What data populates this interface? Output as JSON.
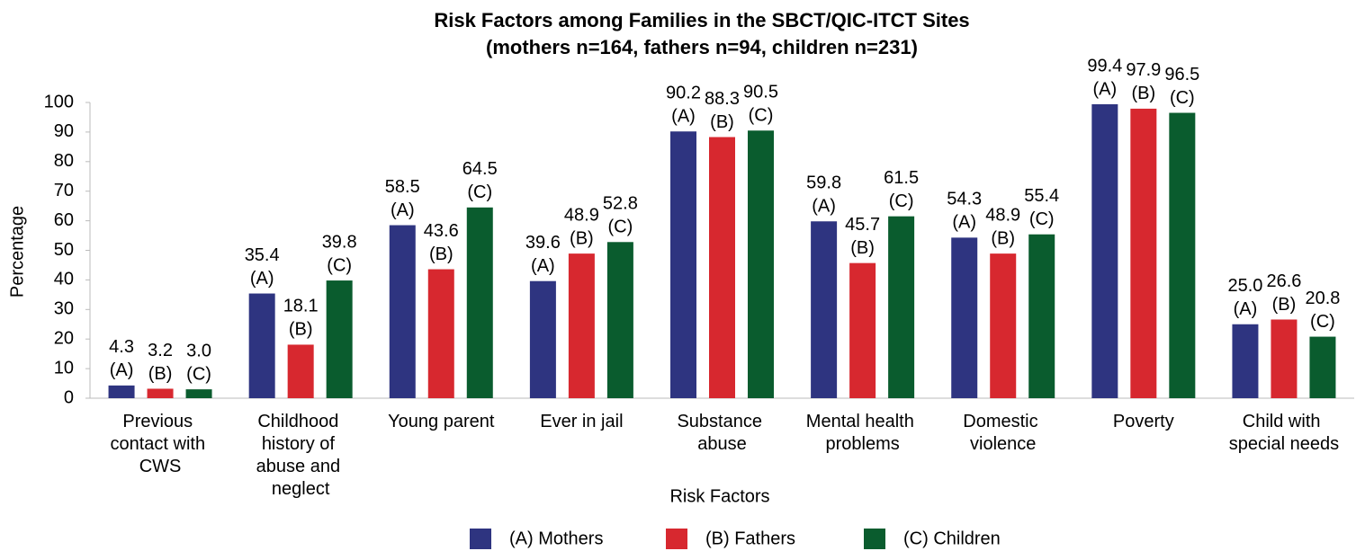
{
  "chart_data": {
    "type": "bar",
    "title": "Risk Factors among Families in the SBCT/QIC-ITCT Sites",
    "subtitle": "(mothers n=164, fathers n=94, children n=231)",
    "x_label": "Risk Factors",
    "y_label": "Percentage",
    "categories": [
      "Previous contact with CWS",
      "Childhood history of abuse and neglect",
      "Young parent",
      "Ever in jail",
      "Substance abuse",
      "Mental health problems",
      "Domestic violence",
      "Poverty",
      "Child with special needs"
    ],
    "series": [
      {
        "name": "(A) Mothers",
        "tag": "(A)",
        "color": "#2e3480",
        "values": [
          4.3,
          35.4,
          58.5,
          39.6,
          90.2,
          59.8,
          54.3,
          99.4,
          25.0
        ],
        "value_labels": [
          "4.3",
          "35.4",
          "58.5",
          "39.6",
          "90.2",
          "59.8",
          "54.3",
          "99.4",
          "25.0"
        ]
      },
      {
        "name": "(B) Fathers",
        "tag": "(B)",
        "color": "#d7282f",
        "values": [
          3.2,
          18.1,
          43.6,
          48.9,
          88.3,
          45.7,
          48.9,
          97.9,
          26.6
        ],
        "value_labels": [
          "3.2",
          "18.1",
          "43.6",
          "48.9",
          "88.3",
          "45.7",
          "48.9",
          "97.9",
          "26.6"
        ]
      },
      {
        "name": "(C) Children",
        "tag": "(C)",
        "color": "#0a5c2e",
        "values": [
          3.0,
          39.8,
          64.5,
          52.8,
          90.5,
          61.5,
          55.4,
          96.5,
          20.8
        ],
        "value_labels": [
          "3.0",
          "39.8",
          "64.5",
          "52.8",
          "90.5",
          "61.5",
          "55.4",
          "96.5",
          "20.8"
        ]
      }
    ],
    "ylim": [
      0,
      100
    ],
    "yticks": [
      0,
      10,
      20,
      30,
      40,
      50,
      60,
      70,
      80,
      90,
      100
    ],
    "grid": false,
    "legend": "bottom"
  }
}
